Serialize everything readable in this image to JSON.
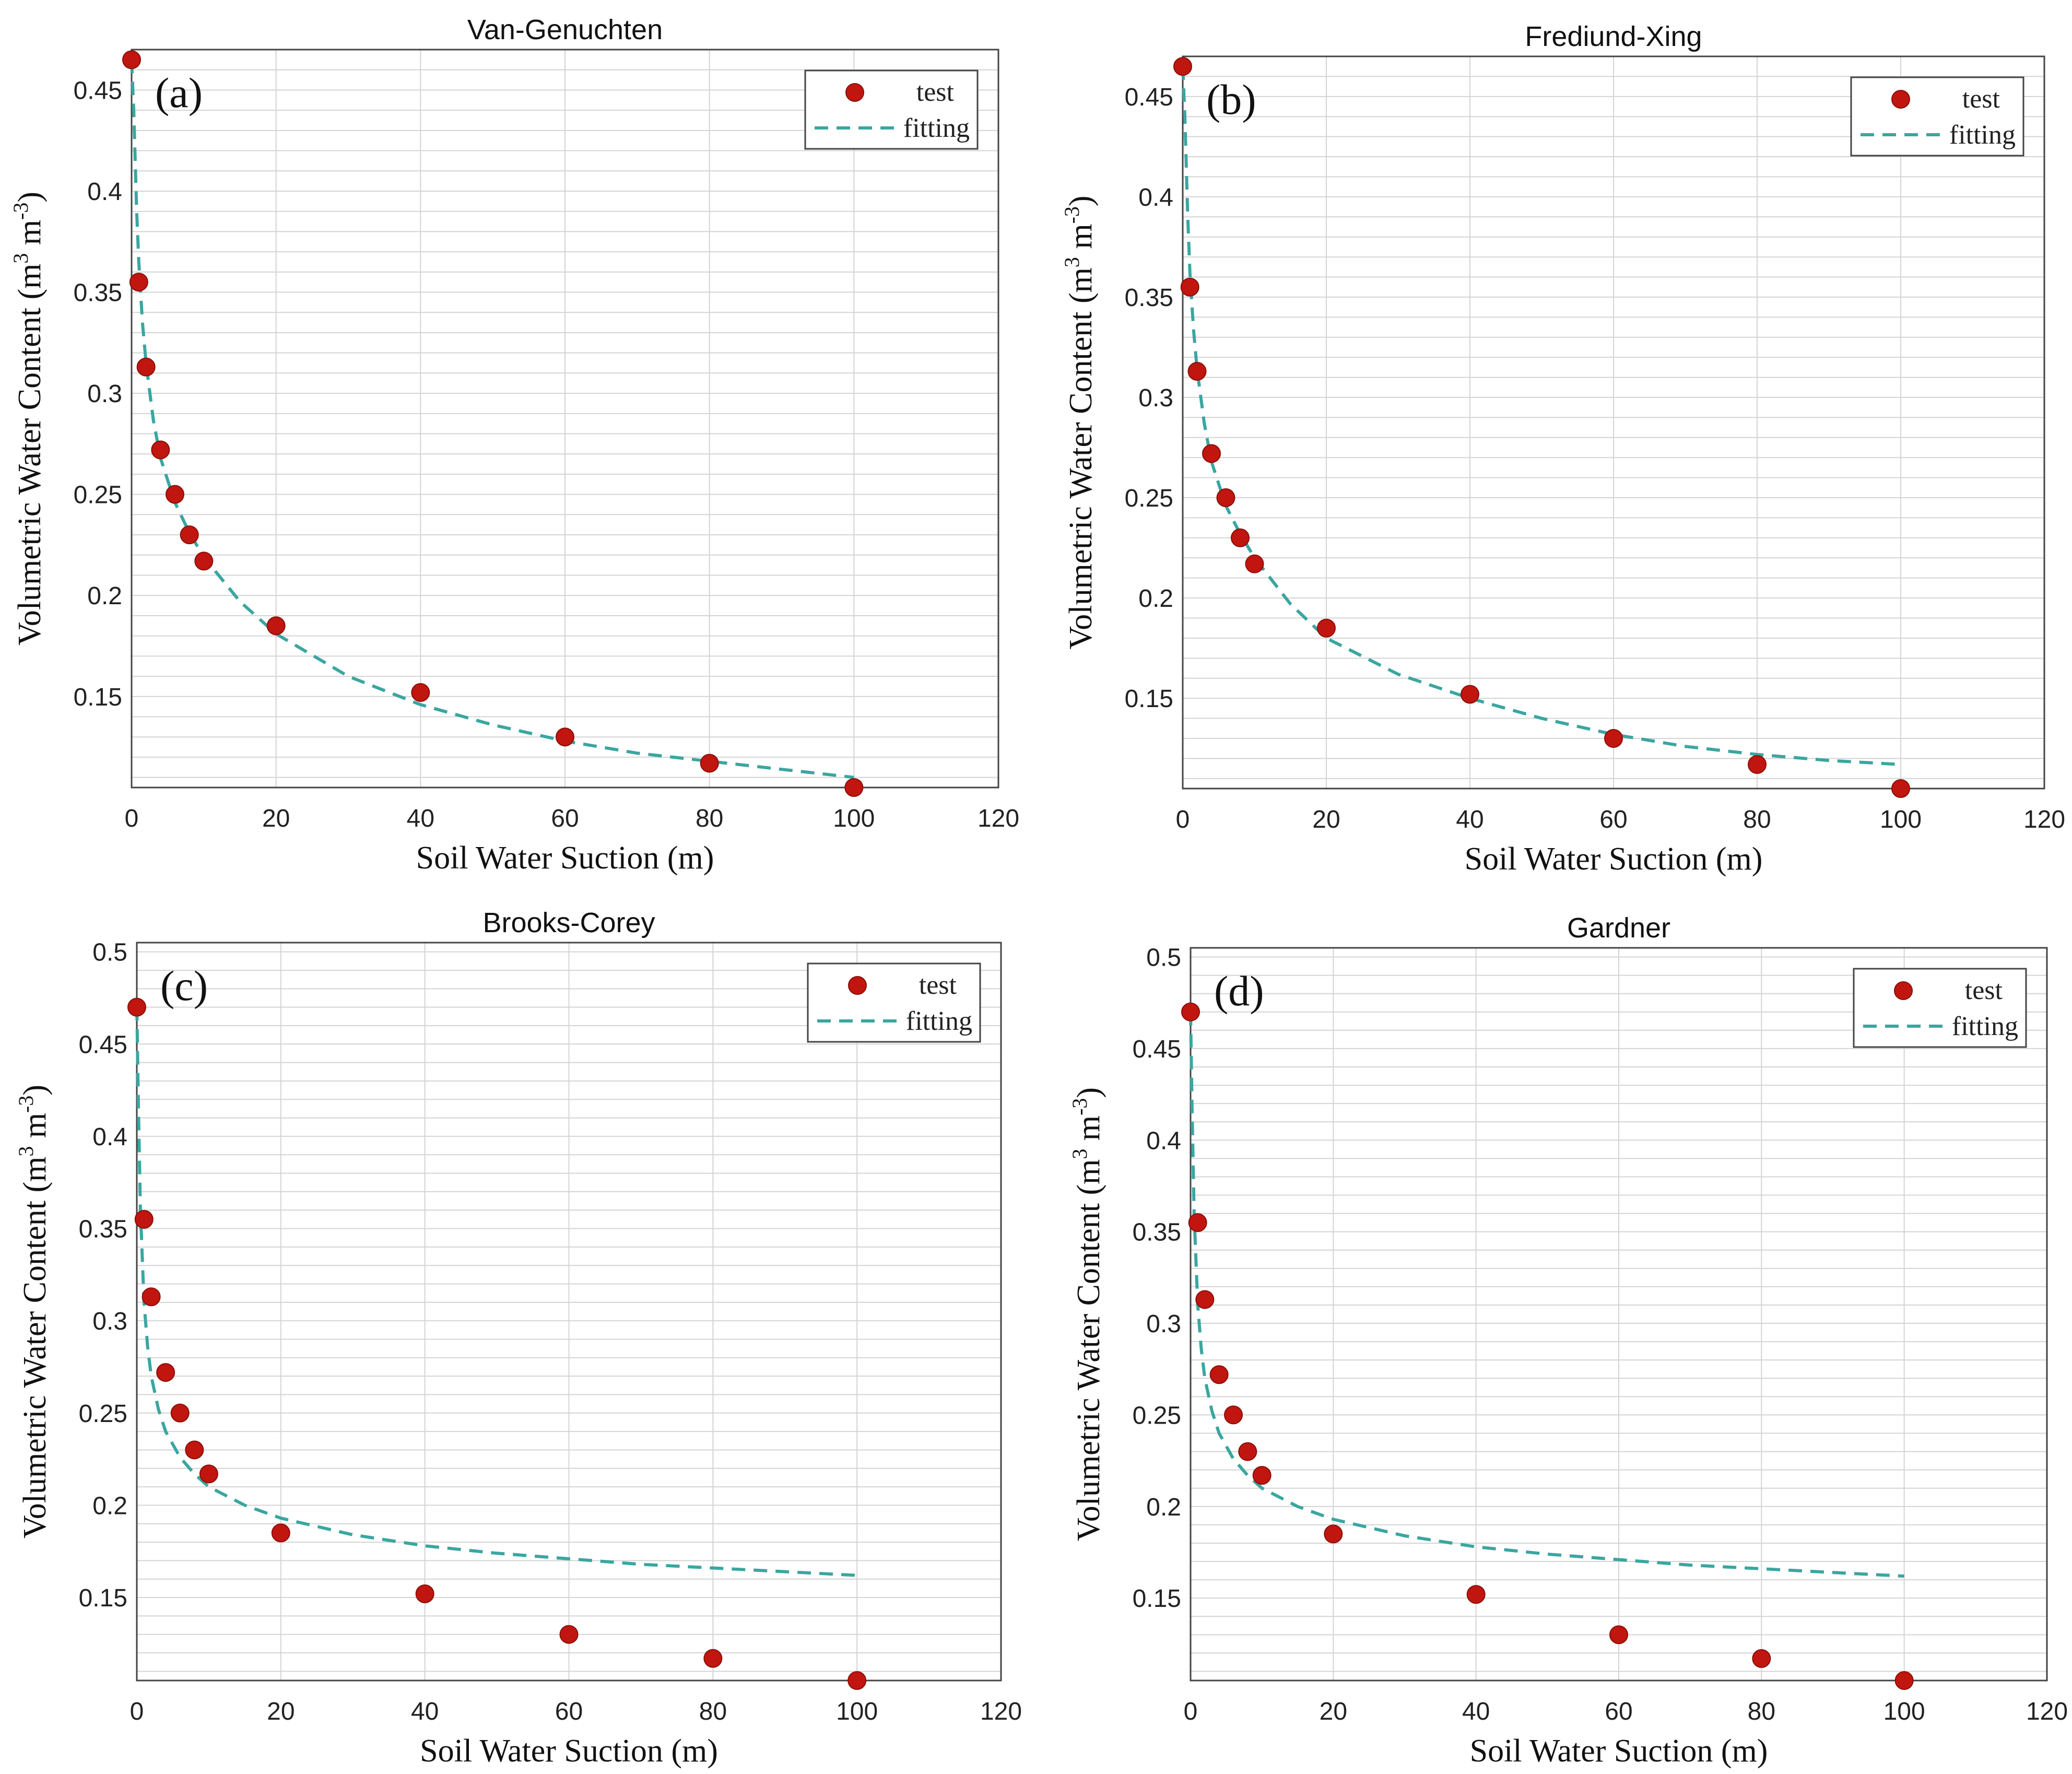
{
  "chart_data": [
    {
      "type": "scatter",
      "panel_label": "(a)",
      "title": "Van-Genuchten",
      "xlabel": "Soil Water Suction (m)",
      "ylabel_main": "Volumetric  Water Content (m",
      "ylabel_sup1": "3",
      "ylabel_mid": " m",
      "ylabel_sup2": "-3",
      "ylabel_end": ")",
      "xlim": [
        0,
        120
      ],
      "ylim": [
        0.105,
        0.47
      ],
      "xticks": [
        0,
        20,
        40,
        60,
        80,
        100,
        120
      ],
      "xtick_labels": [
        "0",
        "20",
        "40",
        "60",
        "80",
        "100",
        "120"
      ],
      "yticks": [
        0.15,
        0.2,
        0.25,
        0.3,
        0.35,
        0.4,
        0.45
      ],
      "ytick_labels": [
        "0.15",
        "0.2",
        "0.25",
        "0.3",
        "0.35",
        "0.4",
        "0.45"
      ],
      "legend": {
        "placement": "top-right",
        "entries": [
          "test",
          "fitting"
        ]
      },
      "series": [
        {
          "name": "test",
          "kind": "points",
          "color": "#c0160f",
          "x": [
            0,
            1,
            2,
            4,
            6,
            8,
            10,
            20,
            40,
            60,
            80,
            100
          ],
          "y": [
            0.465,
            0.355,
            0.313,
            0.272,
            0.25,
            0.23,
            0.217,
            0.185,
            0.152,
            0.13,
            0.117,
            0.105
          ]
        },
        {
          "name": "fitting",
          "kind": "line",
          "color": "#3aa6a0",
          "x": [
            0,
            0.3,
            0.7,
            1,
            1.5,
            2,
            3,
            4,
            6,
            8,
            10,
            15,
            20,
            30,
            40,
            50,
            60,
            70,
            80,
            90,
            100
          ],
          "y": [
            0.465,
            0.44,
            0.39,
            0.365,
            0.335,
            0.315,
            0.287,
            0.268,
            0.246,
            0.231,
            0.219,
            0.197,
            0.181,
            0.16,
            0.146,
            0.136,
            0.128,
            0.122,
            0.118,
            0.114,
            0.11
          ]
        }
      ]
    },
    {
      "type": "scatter",
      "panel_label": "(b)",
      "title": "Frediund-Xing",
      "xlabel": "Soil Water Suction (m)",
      "ylabel_main": "Volumetric  Water Content (m",
      "ylabel_sup1": "3",
      "ylabel_mid": " m",
      "ylabel_sup2": "-3",
      "ylabel_end": ")",
      "xlim": [
        0,
        120
      ],
      "ylim": [
        0.105,
        0.47
      ],
      "xticks": [
        0,
        20,
        40,
        60,
        80,
        100,
        120
      ],
      "xtick_labels": [
        "0",
        "20",
        "40",
        "60",
        "80",
        "100",
        "120"
      ],
      "yticks": [
        0.15,
        0.2,
        0.25,
        0.3,
        0.35,
        0.4,
        0.45
      ],
      "ytick_labels": [
        "0.15",
        "0.2",
        "0.25",
        "0.3",
        "0.35",
        "0.4",
        "0.45"
      ],
      "legend": {
        "placement": "top-right",
        "entries": [
          "test",
          "fitting"
        ]
      },
      "series": [
        {
          "name": "test",
          "kind": "points",
          "color": "#c0160f",
          "x": [
            0,
            1,
            2,
            4,
            6,
            8,
            10,
            20,
            40,
            60,
            80,
            100
          ],
          "y": [
            0.465,
            0.355,
            0.313,
            0.272,
            0.25,
            0.23,
            0.217,
            0.185,
            0.152,
            0.13,
            0.117,
            0.105
          ]
        },
        {
          "name": "fitting",
          "kind": "line",
          "color": "#3aa6a0",
          "x": [
            0,
            0.3,
            0.7,
            1,
            1.5,
            2,
            3,
            4,
            6,
            8,
            10,
            15,
            20,
            30,
            40,
            50,
            60,
            70,
            80,
            90,
            100
          ],
          "y": [
            0.465,
            0.44,
            0.39,
            0.362,
            0.334,
            0.314,
            0.287,
            0.268,
            0.246,
            0.232,
            0.22,
            0.197,
            0.18,
            0.162,
            0.15,
            0.14,
            0.132,
            0.126,
            0.122,
            0.119,
            0.117
          ]
        }
      ]
    },
    {
      "type": "scatter",
      "panel_label": "(c)",
      "title": "Brooks-Corey",
      "xlabel": "Soil Water Suction (m)",
      "ylabel_main": "Volumetric  Water Content (m",
      "ylabel_sup1": "3",
      "ylabel_mid": " m",
      "ylabel_sup2": "-3",
      "ylabel_end": ")",
      "xlim": [
        0,
        120
      ],
      "ylim": [
        0.105,
        0.505
      ],
      "xticks": [
        0,
        20,
        40,
        60,
        80,
        100,
        120
      ],
      "xtick_labels": [
        "0",
        "20",
        "40",
        "60",
        "80",
        "100",
        "120"
      ],
      "yticks": [
        0.15,
        0.2,
        0.25,
        0.3,
        0.35,
        0.4,
        0.45,
        0.5
      ],
      "ytick_labels": [
        "0.15",
        "0.2",
        "0.25",
        "0.3",
        "0.35",
        "0.4",
        "0.45",
        "0.5"
      ],
      "legend": {
        "placement": "top-right",
        "entries": [
          "test",
          "fitting"
        ]
      },
      "series": [
        {
          "name": "test",
          "kind": "points",
          "color": "#c0160f",
          "x": [
            0,
            1,
            2,
            4,
            6,
            8,
            10,
            20,
            40,
            60,
            80,
            100
          ],
          "y": [
            0.47,
            0.355,
            0.313,
            0.272,
            0.25,
            0.23,
            0.217,
            0.185,
            0.152,
            0.13,
            0.117,
            0.105
          ]
        },
        {
          "name": "fitting",
          "kind": "line",
          "color": "#3aa6a0",
          "x": [
            0,
            0.2,
            0.5,
            1,
            1.5,
            2,
            3,
            4,
            6,
            8,
            10,
            15,
            20,
            30,
            40,
            50,
            60,
            70,
            80,
            90,
            100
          ],
          "y": [
            0.47,
            0.42,
            0.36,
            0.31,
            0.286,
            0.27,
            0.252,
            0.24,
            0.226,
            0.217,
            0.21,
            0.2,
            0.193,
            0.184,
            0.178,
            0.174,
            0.171,
            0.168,
            0.166,
            0.164,
            0.162
          ]
        }
      ]
    },
    {
      "type": "scatter",
      "panel_label": "(d)",
      "title": "Gardner",
      "xlabel": "Soil Water Suction (m)",
      "ylabel_main": "Volumetric  Water Content (m",
      "ylabel_sup1": "3",
      "ylabel_mid": " m",
      "ylabel_sup2": "-3",
      "ylabel_end": ")",
      "xlim": [
        0,
        120
      ],
      "ylim": [
        0.105,
        0.505
      ],
      "xticks": [
        0,
        20,
        40,
        60,
        80,
        100,
        120
      ],
      "xtick_labels": [
        "0",
        "20",
        "40",
        "60",
        "80",
        "100",
        "120"
      ],
      "yticks": [
        0.15,
        0.2,
        0.25,
        0.3,
        0.35,
        0.4,
        0.45,
        0.5
      ],
      "ytick_labels": [
        "0.15",
        "0.2",
        "0.25",
        "0.3",
        "0.35",
        "0.4",
        "0.45",
        "0.5"
      ],
      "legend": {
        "placement": "top-right",
        "entries": [
          "test",
          "fitting"
        ]
      },
      "series": [
        {
          "name": "test",
          "kind": "points",
          "color": "#c0160f",
          "x": [
            0,
            1,
            2,
            4,
            6,
            8,
            10,
            20,
            40,
            60,
            80,
            100
          ],
          "y": [
            0.47,
            0.355,
            0.313,
            0.272,
            0.25,
            0.23,
            0.217,
            0.185,
            0.152,
            0.13,
            0.117,
            0.105
          ]
        },
        {
          "name": "fitting",
          "kind": "line",
          "color": "#3aa6a0",
          "x": [
            0,
            0.2,
            0.5,
            1,
            1.5,
            2,
            3,
            4,
            6,
            8,
            10,
            15,
            20,
            30,
            40,
            50,
            60,
            70,
            80,
            90,
            100
          ],
          "y": [
            0.47,
            0.42,
            0.36,
            0.31,
            0.286,
            0.27,
            0.252,
            0.24,
            0.226,
            0.217,
            0.21,
            0.2,
            0.193,
            0.184,
            0.178,
            0.174,
            0.171,
            0.168,
            0.166,
            0.164,
            0.162
          ]
        }
      ]
    }
  ]
}
